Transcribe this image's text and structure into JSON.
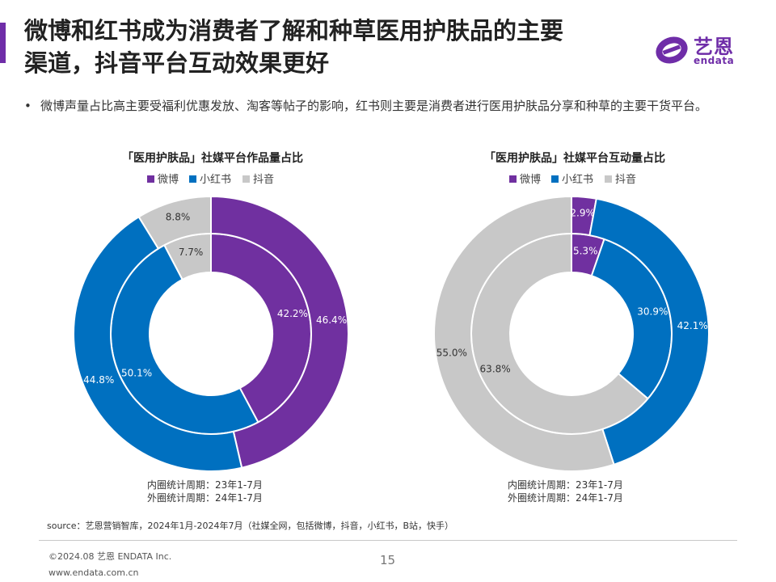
{
  "header": {
    "title_line1": "微博和红书成为消费者了解和种草医用护肤品的主要",
    "title_line2": "渠道，抖音平台互动效果更好",
    "logo_cn": "艺恩",
    "logo_en": "endata"
  },
  "bullet": {
    "dot": "•",
    "text": "微博声量占比高主要受福利优惠发放、淘客等帖子的影响，红书则主要是消费者进行医用护肤品分享和种草的主要干货平台。"
  },
  "colors": {
    "weibo": "#7030a0",
    "xiaohongshu": "#0070c0",
    "douyin": "#c8c8c8",
    "accent": "#6f2da8"
  },
  "chart_data": [
    {
      "type": "pie",
      "subtype": "double-donut",
      "title": "「医用护肤品」社媒平台作品量占比",
      "legend": [
        "微博",
        "小红书",
        "抖音"
      ],
      "categories": [
        "微博",
        "小红书",
        "抖音"
      ],
      "series": [
        {
          "name": "内圈统计周期：23年1-7月",
          "values": [
            42.2,
            50.1,
            7.7
          ]
        },
        {
          "name": "外圈统计周期：24年1-7月",
          "values": [
            46.4,
            44.8,
            8.8
          ]
        }
      ],
      "notes": [
        "内圈统计周期：23年1-7月",
        "外圈统计周期：24年1-7月"
      ]
    },
    {
      "type": "pie",
      "subtype": "double-donut",
      "title": "「医用护肤品」社媒平台互动量占比",
      "legend": [
        "微博",
        "小红书",
        "抖音"
      ],
      "categories": [
        "微博",
        "小红书",
        "抖音"
      ],
      "series": [
        {
          "name": "内圈统计周期：23年1-7月",
          "values": [
            5.3,
            30.9,
            63.8
          ]
        },
        {
          "name": "外圈统计周期：24年1-7月",
          "values": [
            2.9,
            42.1,
            55.0
          ]
        }
      ],
      "notes": [
        "内圈统计周期：23年1-7月",
        "外圈统计周期：24年1-7月"
      ]
    }
  ],
  "footer": {
    "source": "source：艺恩营销智库，2024年1月-2024年7月（社媒全网，包括微博，抖音，小红书，B站，快手）",
    "copyright": "©2024.08 艺恩 ENDATA Inc.",
    "website": "www.endata.com.cn",
    "page": "15"
  }
}
